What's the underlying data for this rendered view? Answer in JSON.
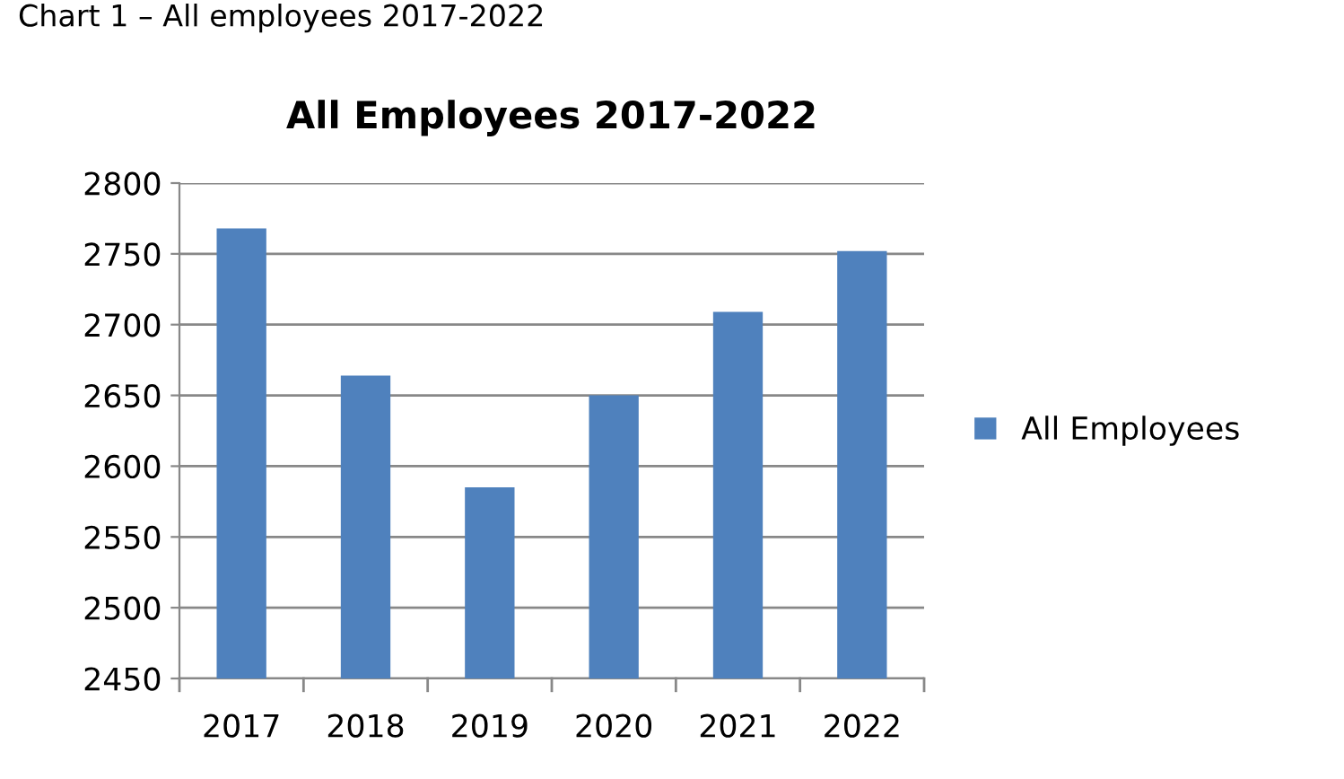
{
  "chart_data": {
    "type": "bar",
    "title": "All Employees 2017-2022",
    "annotations": [
      "Chart 1 – All employees 2017-2022"
    ],
    "categories": [
      "2017",
      "2018",
      "2019",
      "2020",
      "2021",
      "2022"
    ],
    "series": [
      {
        "name": "All Employees",
        "color": "#4f81bd",
        "values": [
          2768,
          2664,
          2585,
          2650,
          2709,
          2752
        ]
      }
    ],
    "ylim": [
      2450,
      2800
    ],
    "yticks": [
      2450,
      2500,
      2550,
      2600,
      2650,
      2700,
      2750,
      2800
    ],
    "grid": "y",
    "legend": "right"
  }
}
